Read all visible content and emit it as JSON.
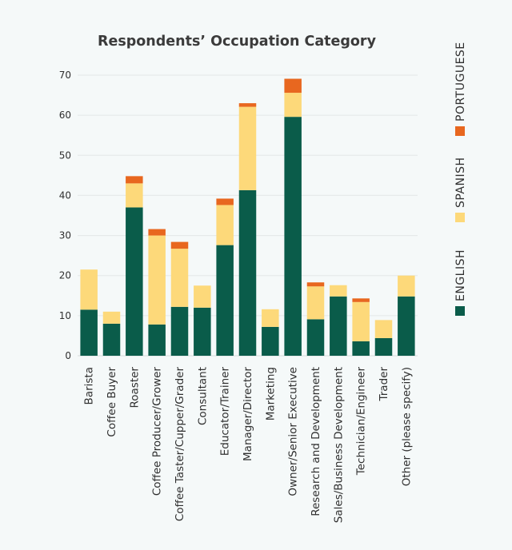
{
  "chart_data": {
    "type": "bar",
    "stacked": true,
    "title": "Respondents’ Occupation Category",
    "xlabel": "",
    "ylabel": "",
    "ylim": [
      0,
      70
    ],
    "yticks": [
      0,
      10,
      20,
      30,
      40,
      50,
      60,
      70
    ],
    "grid": true,
    "legend_position": "right",
    "categories": [
      "Barista",
      "Coffee Buyer",
      "Roaster",
      "Coffee Producer/Grower",
      "Coffee Taster/Cupper/Grader",
      "Consultant",
      "Educator/Trainer",
      "Manager/Director",
      "Marketing",
      "Owner/Senior Executive",
      "Research and Development",
      "Sales/Business Development",
      "Technician/Engineer",
      "Trader",
      "Other (please specify)"
    ],
    "series": [
      {
        "name": "ENGLISH",
        "color": "#0a5c4a",
        "values": [
          11.5,
          8,
          37,
          7.8,
          12.2,
          12,
          27.6,
          41.3,
          7.2,
          59.6,
          9.1,
          14.8,
          3.6,
          4.4,
          14.8
        ]
      },
      {
        "name": "SPANISH",
        "color": "#fdd97a",
        "values": [
          10,
          3,
          6,
          22.2,
          14.5,
          5.5,
          10,
          20.8,
          4.4,
          6,
          8.2,
          2.8,
          9.8,
          4.5,
          5.2
        ]
      },
      {
        "name": "PORTUGUESE",
        "color": "#e8671f",
        "values": [
          0,
          0,
          1.8,
          1.6,
          1.7,
          0,
          1.6,
          0.9,
          0,
          3.5,
          1,
          0,
          0.9,
          0,
          0
        ]
      }
    ]
  }
}
